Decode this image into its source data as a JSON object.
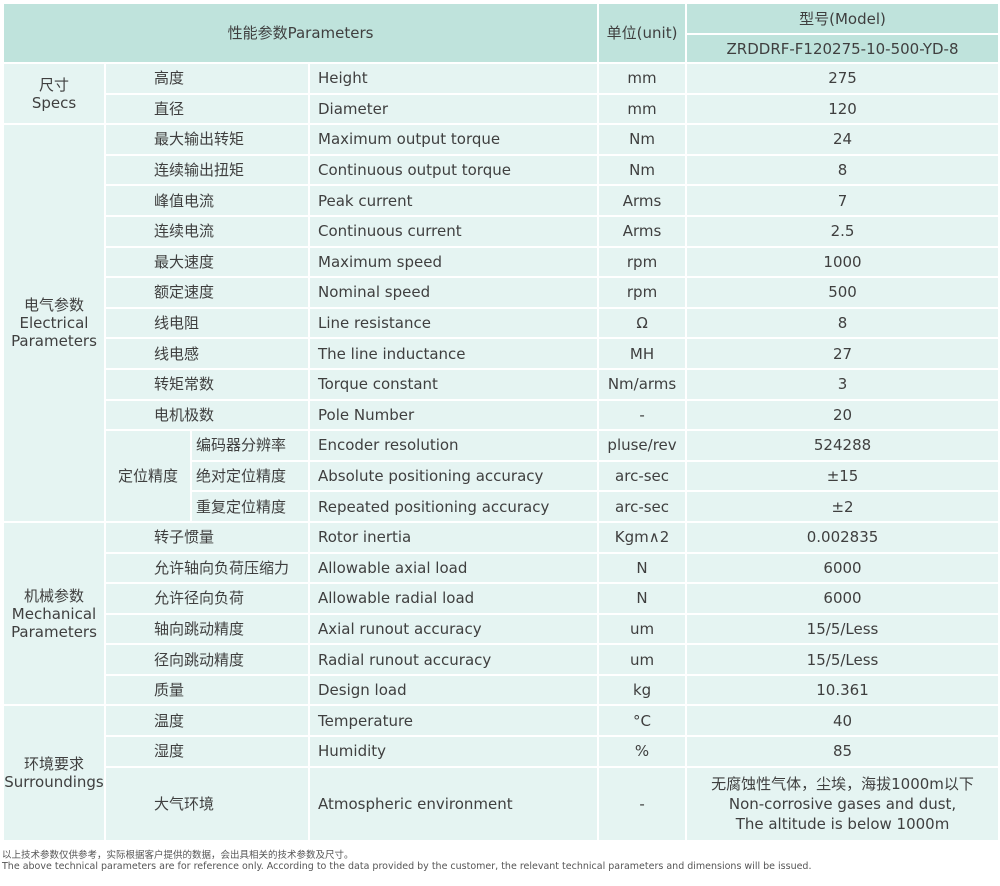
{
  "header": {
    "parameters": "性能参数Parameters",
    "unit": "单位(unit)",
    "model_label": "型号(Model)",
    "model_name": "ZRDDRF-F120275-10-500-YD-8"
  },
  "groups": [
    {
      "cn": "尺寸",
      "en": "Specs",
      "rows": [
        {
          "cn": "高度",
          "en": "Height",
          "unit": "mm",
          "value": "275"
        },
        {
          "cn": "直径",
          "en": "Diameter",
          "unit": "mm",
          "value": "120"
        }
      ]
    },
    {
      "cn": "电气参数",
      "en": "Electrical Parameters",
      "rows": [
        {
          "cn": "最大输出转矩",
          "en": "Maximum output torque",
          "unit": "Nm",
          "value": "24"
        },
        {
          "cn": "连续输出扭矩",
          "en": "Continuous output torque",
          "unit": "Nm",
          "value": "8"
        },
        {
          "cn": "峰值电流",
          "en": "Peak current",
          "unit": "Arms",
          "value": "7"
        },
        {
          "cn": "连续电流",
          "en": "Continuous current",
          "unit": "Arms",
          "value": "2.5"
        },
        {
          "cn": "最大速度",
          "en": "Maximum speed",
          "unit": "rpm",
          "value": "1000"
        },
        {
          "cn": "额定速度",
          "en": "Nominal speed",
          "unit": "rpm",
          "value": "500"
        },
        {
          "cn": "线电阻",
          "en": "Line resistance",
          "unit": "Ω",
          "value": "8"
        },
        {
          "cn": "线电感",
          "en": "The line inductance",
          "unit": "MH",
          "value": "27"
        },
        {
          "cn": "转矩常数",
          "en": "Torque constant",
          "unit": "Nm/arms",
          "value": "3"
        },
        {
          "cn": "电机极数",
          "en": "Pole Number",
          "unit": "-",
          "value": "20"
        },
        {
          "sub": "定位精度",
          "cn": "编码器分辨率",
          "en": "Encoder resolution",
          "unit": "pluse/rev",
          "value": "524288"
        },
        {
          "sub": "定位精度",
          "cn": "绝对定位精度",
          "en": "Absolute positioning accuracy",
          "unit": "arc-sec",
          "value": "±15"
        },
        {
          "sub": "定位精度",
          "cn": "重复定位精度",
          "en": "Repeated positioning accuracy",
          "unit": "arc-sec",
          "value": "±2"
        }
      ]
    },
    {
      "cn": "机械参数",
      "en": "Mechanical Parameters",
      "rows": [
        {
          "cn": "转子惯量",
          "en": "Rotor inertia",
          "unit": "Kgm∧2",
          "value": "0.002835"
        },
        {
          "cn": "允许轴向负荷压缩力",
          "en": "Allowable axial load",
          "unit": "N",
          "value": "6000"
        },
        {
          "cn": "允许径向负荷",
          "en": "Allowable radial load",
          "unit": "N",
          "value": "6000"
        },
        {
          "cn": "轴向跳动精度",
          "en": "Axial runout accuracy",
          "unit": "um",
          "value": "15/5/Less"
        },
        {
          "cn": "径向跳动精度",
          "en": "Radial runout accuracy",
          "unit": "um",
          "value": "15/5/Less"
        },
        {
          "cn": "质量",
          "en": "Design load",
          "unit": "kg",
          "value": "10.361"
        }
      ]
    },
    {
      "cn": "环境要求",
      "en": "Surroundings",
      "rows": [
        {
          "cn": "温度",
          "en": "Temperature",
          "unit": "°C",
          "value": "40"
        },
        {
          "cn": "湿度",
          "en": "Humidity",
          "unit": "%",
          "value": "85"
        },
        {
          "cn": "大气环境",
          "en": "Atmospheric environment",
          "unit": "-",
          "value": "无腐蚀性气体，尘埃，海拔1000m以下\nNon-corrosive gases and dust,\nThe altitude is below 1000m",
          "tall": true
        }
      ]
    }
  ],
  "notes": {
    "cn": "以上技术参数仅供参考，实际根据客户提供的数据，会出具相关的技术参数及尺寸。",
    "en": "The above technical parameters are for reference only. According to the data provided by the customer, the relevant technical parameters and dimensions will be issued."
  }
}
